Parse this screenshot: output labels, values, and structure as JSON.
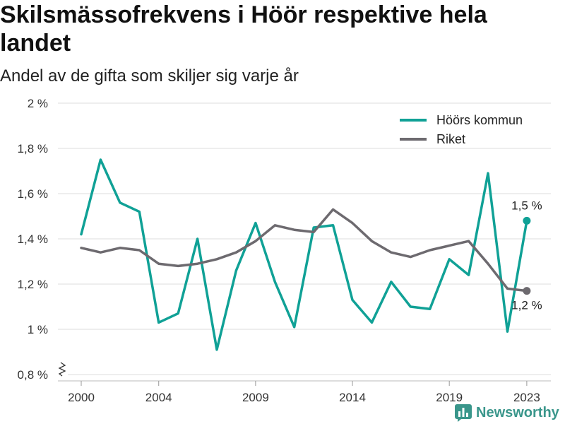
{
  "chart_data": {
    "type": "line",
    "title": "Skilsmässofrekvens i Höör respektive hela landet",
    "subtitle": "Andel av de gifta som skiljer sig varje år",
    "x": [
      2000,
      2001,
      2002,
      2003,
      2004,
      2005,
      2006,
      2007,
      2008,
      2009,
      2010,
      2011,
      2012,
      2013,
      2014,
      2015,
      2016,
      2017,
      2018,
      2019,
      2020,
      2021,
      2022,
      2023
    ],
    "series": [
      {
        "name": "Höörs kommun",
        "color": "#10a196",
        "values": [
          1.42,
          1.75,
          1.56,
          1.52,
          1.03,
          1.07,
          1.4,
          0.91,
          1.26,
          1.47,
          1.21,
          1.01,
          1.45,
          1.46,
          1.13,
          1.03,
          1.21,
          1.1,
          1.09,
          1.31,
          1.24,
          1.69,
          0.99,
          1.48
        ]
      },
      {
        "name": "Riket",
        "color": "#6d6a6f",
        "values": [
          1.36,
          1.34,
          1.36,
          1.35,
          1.29,
          1.28,
          1.29,
          1.31,
          1.34,
          1.39,
          1.46,
          1.44,
          1.43,
          1.53,
          1.47,
          1.39,
          1.34,
          1.32,
          1.35,
          1.37,
          1.39,
          1.29,
          1.18,
          1.17
        ]
      }
    ],
    "ylim": [
      0.8,
      2
    ],
    "yticks": [
      0.8,
      1,
      1.2,
      1.4,
      1.6,
      1.8,
      2
    ],
    "ytick_labels": [
      "0,8 %",
      "1 %",
      "1,2 %",
      "1,4 %",
      "1,6 %",
      "1,8 %",
      "2 %"
    ],
    "xticks": [
      2000,
      2004,
      2009,
      2014,
      2019,
      2023
    ],
    "xtick_labels": [
      "2000",
      "2004",
      "2009",
      "2014",
      "2019",
      "2023"
    ],
    "grid": true,
    "y_axis_break": true,
    "legend_position": "top-right",
    "annotations": [
      {
        "series": 0,
        "x": 2023,
        "label": "1,5 %"
      },
      {
        "series": 1,
        "x": 2023,
        "label": "1,2 %"
      }
    ]
  },
  "logo": {
    "text": "Newsworthy",
    "icon": "newsworthy-logo-icon",
    "color": "#3a968b"
  }
}
